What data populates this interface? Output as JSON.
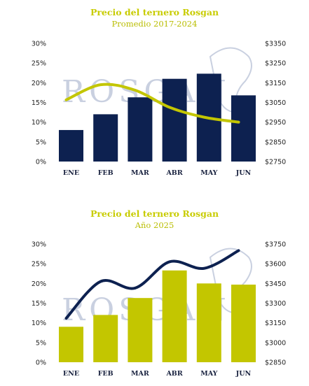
{
  "colors": {
    "title": "#c8cc00",
    "subtitle": "#b9bd00",
    "navy": "#0d2150",
    "lime": "#c3c600",
    "watermark": "#c9d0e0"
  },
  "watermark_text": "ROSGAN",
  "chart_data": [
    {
      "type": "bar",
      "title": "Precio del ternero Rosgan",
      "subtitle": "Promedio 2017-2024",
      "categories": [
        "ENE",
        "FEB",
        "MAR",
        "ABR",
        "MAY",
        "JUN"
      ],
      "series": [
        {
          "axis": "left",
          "type": "bar",
          "color": "#0d2150",
          "values": [
            8,
            12,
            16.3,
            21,
            22.3,
            16.8
          ]
        },
        {
          "axis": "right",
          "type": "line",
          "color": "#c3c600",
          "values": [
            3063,
            3140,
            3112,
            3025,
            2975,
            2950
          ]
        }
      ],
      "left_axis": {
        "min": 0,
        "max": 30,
        "ticks": [
          "0%",
          "5%",
          "10%",
          "15%",
          "20%",
          "25%",
          "30%"
        ]
      },
      "right_axis": {
        "min": 2750,
        "max": 3350,
        "ticks": [
          "$2750",
          "$2850",
          "$2950",
          "$3050",
          "$3150",
          "$3250",
          "$3350"
        ]
      },
      "grid": false,
      "legend": "none"
    },
    {
      "type": "bar",
      "title": "Precio del ternero Rosgan",
      "subtitle": "Año 2025",
      "categories": [
        "ENE",
        "FEB",
        "MAR",
        "ABR",
        "MAY",
        "JUN"
      ],
      "series": [
        {
          "axis": "left",
          "type": "bar",
          "color": "#c3c600",
          "values": [
            9,
            12,
            16.3,
            23.3,
            20,
            19.7
          ]
        },
        {
          "axis": "right",
          "type": "line",
          "color": "#0d2150",
          "values": [
            3185,
            3465,
            3415,
            3615,
            3565,
            3700
          ]
        }
      ],
      "left_axis": {
        "min": 0,
        "max": 30,
        "ticks": [
          "0%",
          "5%",
          "10%",
          "15%",
          "20%",
          "25%",
          "30%"
        ]
      },
      "right_axis": {
        "min": 2850,
        "max": 3750,
        "ticks": [
          "$2850",
          "$3000",
          "$3150",
          "$3300",
          "$3450",
          "$3600",
          "$3750"
        ]
      },
      "grid": false,
      "legend": "none"
    }
  ]
}
